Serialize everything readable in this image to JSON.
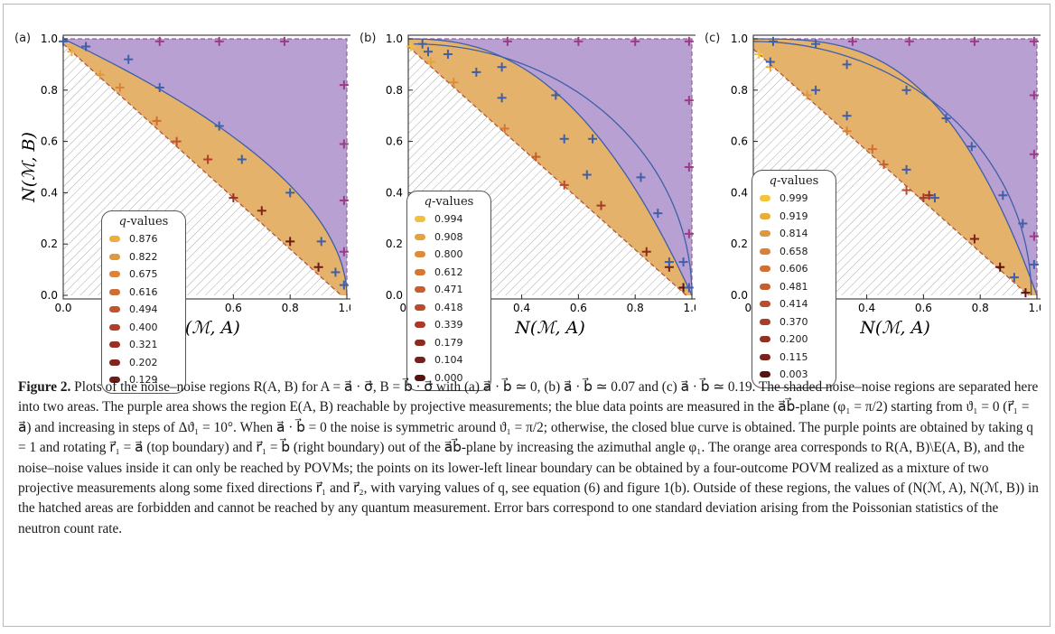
{
  "colors": {
    "purple": "#b8a0d2",
    "orange": "#e4b26a",
    "blue": "#3f5fa8",
    "purple_point": "#9b3a86",
    "hatch": "#a8a8a8"
  },
  "axes": {
    "xlabel": "N(ℳ, A)",
    "ylabel": "N(ℳ, B)",
    "ticks": [
      "0.0",
      "0.2",
      "0.4",
      "0.6",
      "0.8",
      "1.0"
    ]
  },
  "legend_title_q": "q",
  "legend_title_rest": "-values",
  "chart_data": [
    {
      "panel": "(a)",
      "type": "scatter",
      "x_range": [
        0,
        1
      ],
      "y_range": [
        0,
        1
      ],
      "blue_points": [
        [
          0.0,
          0.99
        ],
        [
          0.08,
          0.97
        ],
        [
          0.23,
          0.92
        ],
        [
          0.34,
          0.81
        ],
        [
          0.55,
          0.66
        ],
        [
          0.63,
          0.53
        ],
        [
          0.8,
          0.4
        ],
        [
          0.91,
          0.21
        ],
        [
          0.96,
          0.09
        ],
        [
          0.99,
          0.04
        ]
      ],
      "purple_points": [
        [
          0.34,
          0.99
        ],
        [
          0.55,
          0.99
        ],
        [
          0.78,
          0.99
        ],
        [
          0.99,
          0.82
        ],
        [
          0.99,
          0.59
        ],
        [
          0.99,
          0.37
        ],
        [
          0.99,
          0.17
        ]
      ],
      "orange_points": [
        [
          0.03,
          0.95
        ],
        [
          0.13,
          0.86
        ],
        [
          0.2,
          0.81
        ],
        [
          0.33,
          0.68
        ],
        [
          0.4,
          0.6
        ],
        [
          0.51,
          0.53
        ],
        [
          0.6,
          0.38
        ],
        [
          0.7,
          0.33
        ],
        [
          0.8,
          0.21
        ],
        [
          0.9,
          0.11
        ]
      ],
      "legend": {
        "q_values": [
          "0.876",
          "0.822",
          "0.675",
          "0.616",
          "0.494",
          "0.400",
          "0.321",
          "0.202",
          "0.129"
        ]
      }
    },
    {
      "panel": "(b)",
      "type": "scatter",
      "x_range": [
        0,
        1
      ],
      "y_range": [
        0,
        1
      ],
      "blue_points": [
        [
          0.05,
          0.98
        ],
        [
          0.07,
          0.95
        ],
        [
          0.14,
          0.94
        ],
        [
          0.24,
          0.87
        ],
        [
          0.33,
          0.89
        ],
        [
          0.33,
          0.77
        ],
        [
          0.52,
          0.78
        ],
        [
          0.55,
          0.61
        ],
        [
          0.65,
          0.61
        ],
        [
          0.63,
          0.47
        ],
        [
          0.82,
          0.46
        ],
        [
          0.88,
          0.32
        ],
        [
          0.92,
          0.13
        ],
        [
          0.97,
          0.13
        ],
        [
          0.99,
          0.03
        ]
      ],
      "purple_points": [
        [
          0.35,
          0.99
        ],
        [
          0.6,
          0.99
        ],
        [
          0.8,
          0.99
        ],
        [
          0.99,
          0.99
        ],
        [
          0.99,
          0.76
        ],
        [
          0.99,
          0.5
        ],
        [
          0.99,
          0.24
        ]
      ],
      "orange_points": [
        [
          0.01,
          0.97
        ],
        [
          0.08,
          0.91
        ],
        [
          0.16,
          0.83
        ],
        [
          0.34,
          0.65
        ],
        [
          0.45,
          0.54
        ],
        [
          0.55,
          0.43
        ],
        [
          0.68,
          0.35
        ],
        [
          0.84,
          0.17
        ],
        [
          0.92,
          0.11
        ],
        [
          0.97,
          0.03
        ]
      ],
      "legend": {
        "q_values": [
          "0.994",
          "0.908",
          "0.800",
          "0.612",
          "0.471",
          "0.418",
          "0.339",
          "0.179",
          "0.104",
          "0.000"
        ]
      }
    },
    {
      "panel": "(c)",
      "type": "scatter",
      "x_range": [
        0,
        1
      ],
      "y_range": [
        0,
        1
      ],
      "blue_points": [
        [
          0.07,
          0.99
        ],
        [
          0.22,
          0.98
        ],
        [
          0.06,
          0.91
        ],
        [
          0.22,
          0.8
        ],
        [
          0.33,
          0.9
        ],
        [
          0.33,
          0.7
        ],
        [
          0.54,
          0.8
        ],
        [
          0.54,
          0.49
        ],
        [
          0.64,
          0.38
        ],
        [
          0.68,
          0.69
        ],
        [
          0.77,
          0.58
        ],
        [
          0.88,
          0.39
        ],
        [
          0.92,
          0.07
        ],
        [
          0.95,
          0.28
        ],
        [
          0.99,
          0.12
        ]
      ],
      "purple_points": [
        [
          0.35,
          0.99
        ],
        [
          0.55,
          0.99
        ],
        [
          0.78,
          0.99
        ],
        [
          0.99,
          0.99
        ],
        [
          0.99,
          0.78
        ],
        [
          0.99,
          0.55
        ],
        [
          0.99,
          0.23
        ]
      ],
      "orange_points": [
        [
          0.02,
          0.94
        ],
        [
          0.06,
          0.89
        ],
        [
          0.19,
          0.78
        ],
        [
          0.33,
          0.64
        ],
        [
          0.42,
          0.57
        ],
        [
          0.46,
          0.51
        ],
        [
          0.54,
          0.41
        ],
        [
          0.6,
          0.38
        ],
        [
          0.62,
          0.39
        ],
        [
          0.78,
          0.22
        ],
        [
          0.87,
          0.11
        ],
        [
          0.96,
          0.01
        ]
      ],
      "legend": {
        "q_values": [
          "0.999",
          "0.919",
          "0.814",
          "0.658",
          "0.606",
          "0.481",
          "0.414",
          "0.370",
          "0.200",
          "0.115",
          "0.003"
        ]
      }
    }
  ],
  "legend_colors": [
    [
      "#ecae3c",
      "#df9a40",
      "#d9843c",
      "#cf6d34",
      "#c1532e",
      "#b13e29",
      "#9c2f24",
      "#84241d",
      "#6c1b17"
    ],
    [
      "#f0c040",
      "#e3a43b",
      "#dd8c3a",
      "#d37636",
      "#c75d31",
      "#ba4a2c",
      "#a83a27",
      "#8e2b20",
      "#781f1a",
      "#5a1210"
    ],
    [
      "#f4c53c",
      "#e9ad3c",
      "#e19639",
      "#d98237",
      "#d17034",
      "#c45d30",
      "#b84c2c",
      "#a73e28",
      "#942f23",
      "#7c221c",
      "#5a1210"
    ]
  ],
  "caption": {
    "figure_label": "Figure 2.",
    "text": " Plots of the noise–noise regions R(A, B) for A = a⃗ · σ⃗, B = b⃗ · σ⃗ with (a) a⃗ · b⃗ ≃ 0, (b) a⃗ · b⃗ ≃ 0.07 and (c) a⃗ · b⃗ ≃ 0.19. The shaded noise–noise regions are separated here into two areas. The purple area shows the region E(A, B) reachable by projective measurements; the blue data points are measured in the a⃗b⃗-plane (φ₁ = π/2) starting from ϑ₁ = 0 (r⃗₁ = a⃗) and increasing in steps of Δϑ₁ = 10°. When a⃗ · b⃗ = 0 the noise is symmetric around ϑ₁ = π/2; otherwise, the closed blue curve is obtained. The purple points are obtained by taking q = 1 and rotating r⃗₁ = a⃗ (top boundary) and r⃗₁ = b⃗ (right boundary) out of the a⃗b⃗-plane by increasing the azimuthal angle φ₁. The orange area corresponds to R(A, B)\\E(A, B), and the noise–noise values inside it can only be reached by POVMs; the points on its lower-left linear boundary can be obtained by a four-outcome POVM realized as a mixture of two projective measurements along some fixed directions r⃗₁ and r⃗₂, with varying values of q, see equation (6) and figure 1(b). Outside of these regions, the values of (N(ℳ, A), N(ℳ, B)) in the hatched areas are forbidden and cannot be reached by any quantum measurement. Error bars correspond to one standard deviation arising from the Poissonian statistics of the neutron count rate."
  }
}
